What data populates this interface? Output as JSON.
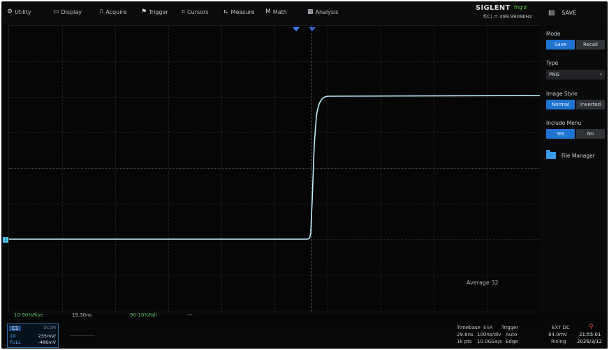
{
  "menu": {
    "utility": "Utility",
    "display": "Display",
    "acquire": "Acquire",
    "trigger": "Trigger",
    "cursors": "Cursors",
    "measure": "Measure",
    "math": "Math",
    "analysis": "Analysis"
  },
  "header": {
    "brand": "SIGLENT",
    "trig_state": "Trig'd",
    "frequency": "f(C) = 499.9909kHz",
    "save_label": "SAVE"
  },
  "panel": {
    "mode_label": "Mode",
    "mode_save": "Save",
    "mode_recall": "Recall",
    "type_label": "Type",
    "type_value": "PNG",
    "style_label": "Image Style",
    "style_normal": "Normal",
    "style_inverted": "Inverted",
    "include_label": "Include Menu",
    "include_yes": "Yes",
    "include_no": "No",
    "file_manager": "File Manager"
  },
  "waveform": {
    "average": "Average 32",
    "color": "#bfefff"
  },
  "measurements": {
    "m1": "10-90%Rise",
    "m2": "19.30ns",
    "m3": "90-10%Fall",
    "m4": "---"
  },
  "channel": {
    "name": "C1",
    "coupling": "DC1M",
    "row1_label": "1X",
    "row1_value": "235mV/",
    "row2_label": "FULL",
    "row2_value": "-486mV"
  },
  "status": {
    "timebase_label": "Timebase",
    "timebase_delay": "29.6ns",
    "timebase_scale": "100ns/div",
    "timebase_points": "1k pts",
    "timebase_rate": "10.0GSa/s",
    "esr": "ESR",
    "trigger_label": "Trigger",
    "trigger_mode": "Auto",
    "trigger_type": "Edge",
    "ext_label": "EXT DC",
    "ext_level": "84.0mV",
    "ext_slope": "Rising",
    "time": "21:55:01",
    "date": "2026/3/12"
  }
}
